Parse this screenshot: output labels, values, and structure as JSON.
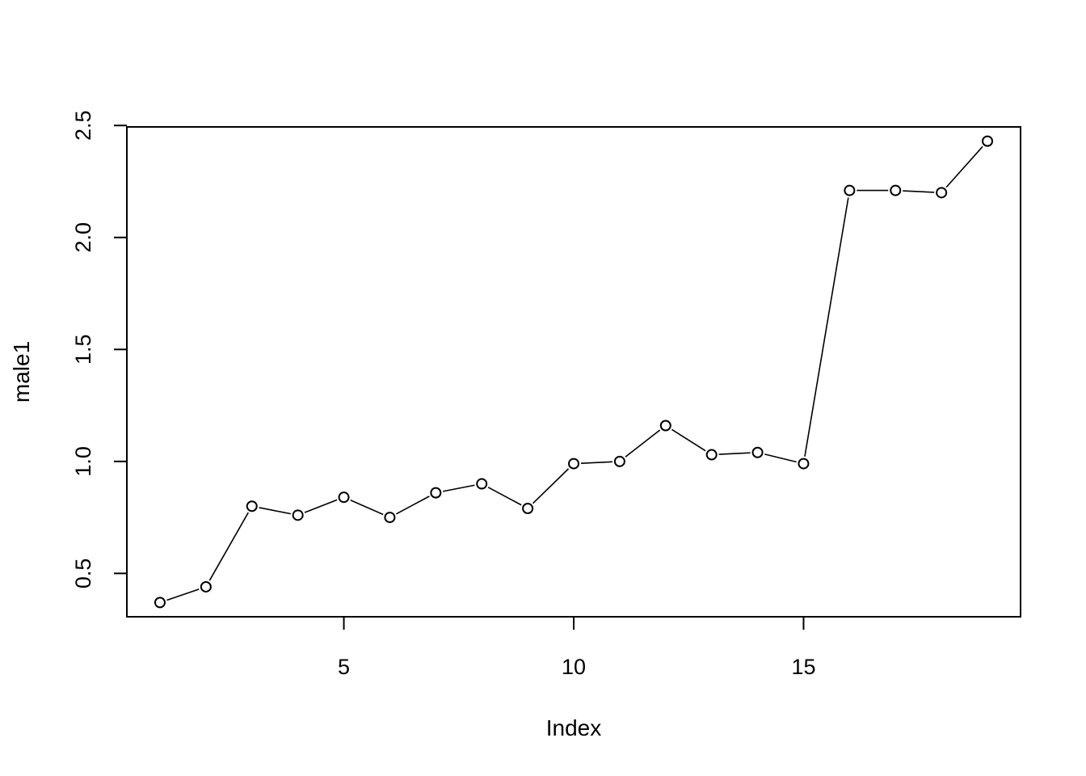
{
  "chart_data": {
    "type": "line",
    "xlabel": "Index",
    "ylabel": "male1",
    "x": [
      1,
      2,
      3,
      4,
      5,
      6,
      7,
      8,
      9,
      10,
      11,
      12,
      13,
      14,
      15,
      16,
      17,
      18,
      19
    ],
    "series": [
      {
        "values": [
          0.37,
          0.44,
          0.8,
          0.76,
          0.84,
          0.75,
          0.86,
          0.9,
          0.79,
          0.99,
          1.0,
          1.16,
          1.03,
          1.04,
          0.99,
          2.21,
          2.21,
          2.2,
          2.43
        ]
      }
    ],
    "xlim": [
      0.28,
      19.72
    ],
    "ylim": [
      0.3064,
      2.4936
    ],
    "x_ticks": [
      5,
      10,
      15
    ],
    "x_tick_labels": [
      "5",
      "10",
      "15"
    ],
    "y_ticks": [
      0.5,
      1.0,
      1.5,
      2.0,
      2.5
    ],
    "y_tick_labels": [
      "0.5",
      "1.0",
      "1.5",
      "2.0",
      "2.5"
    ],
    "markers": "open-circle",
    "grid": false,
    "legend": "none",
    "colors": {
      "line": "#000000",
      "marker": "#000000",
      "background": "#ffffff"
    }
  }
}
